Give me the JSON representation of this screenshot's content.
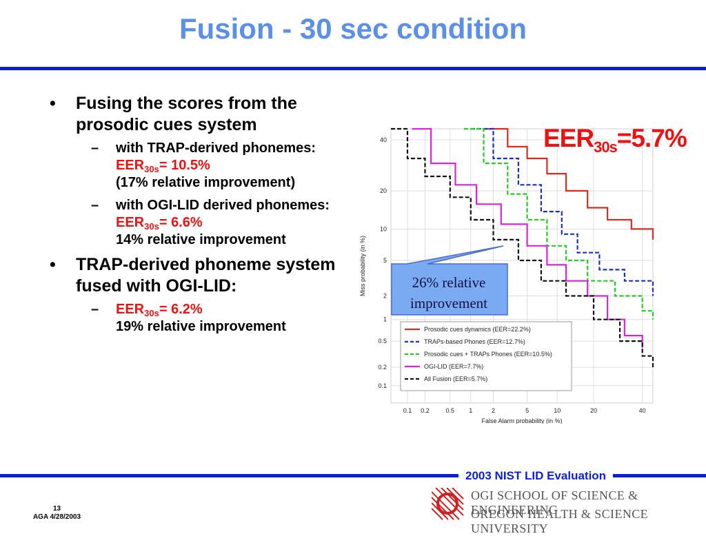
{
  "slide": {
    "title": "Fusion - 30 sec condition",
    "bullets": [
      {
        "text": "Fusing the scores from the prosodic cues system",
        "subs": [
          {
            "lead": "with TRAP-derived phonemes: ",
            "eer_prefix": "EER",
            "eer_sub": "30s",
            "eer_value": "= 10.5%",
            "note": "(17% relative improvement)"
          },
          {
            "lead": "with OGI-LID derived phonemes: ",
            "eer_prefix": "EER",
            "eer_sub": "30s",
            "eer_value": "= 6.6%",
            "note": "14% relative improvement"
          }
        ]
      },
      {
        "text": "TRAP-derived phoneme system fused with OGI-LID:",
        "subs": [
          {
            "lead": "",
            "eer_prefix": "EER",
            "eer_sub": "30s",
            "eer_value": "= 6.2%",
            "note": "19% relative improvement"
          }
        ]
      }
    ],
    "big_eer": {
      "prefix": "EER",
      "sub": "30s",
      "value": "=5.7%"
    },
    "callout": "26% relative improvement",
    "footer": "2003 NIST LID Evaluation",
    "page_number": "13",
    "page_info": "AGA 4/28/2003",
    "institution_line1": "OGI SCHOOL OF SCIENCE & ENGINEERING",
    "institution_line2": "OREGON HEALTH & SCIENCE UNIVERSITY",
    "colors": {
      "title": "#5b8fe8",
      "rule": "#0a1fd6",
      "red": "#ee1111",
      "callout_fill": "#7aaaf2"
    }
  },
  "chart_data": {
    "type": "line",
    "scale": "normal-deviate (DET)",
    "xlabel": "False Alarm probability (in %)",
    "ylabel": "Miss probability (in %)",
    "xticks": [
      "0.1",
      "0.2",
      "0.5",
      "1",
      "2",
      "5",
      "10",
      "20",
      "40"
    ],
    "yticks": [
      "0.1",
      "0.2",
      "0.5",
      "1",
      "2",
      "5",
      "10",
      "20",
      "40"
    ],
    "xlim": [
      0.05,
      45
    ],
    "ylim": [
      0.05,
      45
    ],
    "legend_position": "bottom-left",
    "series": [
      {
        "name": "Prosodic cues dynamics (EER=22.2%)",
        "color": "#d92b1e",
        "dash": "solid",
        "points": [
          [
            1.6,
            45
          ],
          [
            3,
            37
          ],
          [
            5,
            32
          ],
          [
            8,
            26
          ],
          [
            12,
            20
          ],
          [
            18,
            15
          ],
          [
            25,
            12
          ],
          [
            35,
            10
          ],
          [
            45,
            8
          ]
        ]
      },
      {
        "name": "TRAPs-based Phones (EER=12.7%)",
        "color": "#1a2ec0",
        "dash": "dash",
        "points": [
          [
            1,
            45
          ],
          [
            2,
            32
          ],
          [
            4,
            22
          ],
          [
            7,
            14
          ],
          [
            11,
            9
          ],
          [
            15,
            6
          ],
          [
            22,
            4
          ],
          [
            32,
            3
          ],
          [
            45,
            2
          ]
        ]
      },
      {
        "name": "Prosodic cues + TRAPs Phones (EER=10.5%)",
        "color": "#22cc22",
        "dash": "dash",
        "points": [
          [
            0.8,
            45
          ],
          [
            1.5,
            30
          ],
          [
            3,
            19
          ],
          [
            5,
            12
          ],
          [
            8,
            7
          ],
          [
            12,
            5
          ],
          [
            18,
            3
          ],
          [
            28,
            2
          ],
          [
            40,
            1.3
          ],
          [
            45,
            1
          ]
        ]
      },
      {
        "name": "OGI-LID (EER=7.7%)",
        "color": "#dd22dd",
        "dash": "solid",
        "points": [
          [
            0.12,
            45
          ],
          [
            0.25,
            30
          ],
          [
            0.6,
            22
          ],
          [
            1.2,
            16
          ],
          [
            2.5,
            11
          ],
          [
            5,
            7
          ],
          [
            8,
            4.5
          ],
          [
            12,
            3
          ],
          [
            18,
            2
          ],
          [
            25,
            1
          ],
          [
            32,
            0.6
          ],
          [
            40,
            0.4
          ]
        ]
      },
      {
        "name": "All Fusion (EER=5.7%)",
        "color": "#111111",
        "dash": "dash",
        "points": [
          [
            0.05,
            45
          ],
          [
            0.1,
            32
          ],
          [
            0.2,
            25
          ],
          [
            0.5,
            18
          ],
          [
            1,
            12
          ],
          [
            2,
            8
          ],
          [
            4,
            5
          ],
          [
            7,
            3
          ],
          [
            12,
            2
          ],
          [
            20,
            1
          ],
          [
            30,
            0.5
          ],
          [
            40,
            0.3
          ],
          [
            45,
            0.2
          ]
        ]
      }
    ]
  }
}
